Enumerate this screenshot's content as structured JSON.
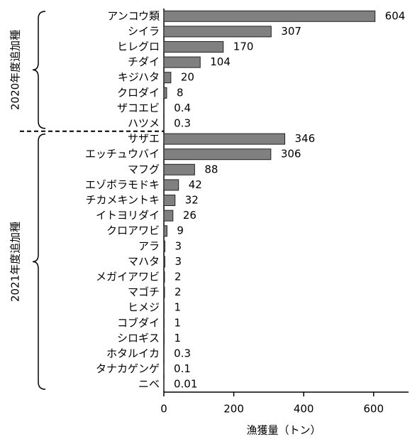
{
  "chart_data": {
    "type": "bar",
    "orientation": "horizontal",
    "categories": [
      "アンコウ類",
      "シイラ",
      "ヒレグロ",
      "チダイ",
      "キジハタ",
      "クロダイ",
      "ザコエビ",
      "ハツメ",
      "サザエ",
      "エッチュウバイ",
      "マフグ",
      "エゾボラモドキ",
      "チカメキントキ",
      "イトヨリダイ",
      "クロアワビ",
      "アラ",
      "マハタ",
      "メガイアワビ",
      "マゴチ",
      "ヒメジ",
      "コブダイ",
      "シロギス",
      "ホタルイカ",
      "タナカゲンゲ",
      "ニベ"
    ],
    "values": [
      604,
      307,
      170,
      104,
      20,
      8,
      0.4,
      0.3,
      346,
      306,
      88,
      42,
      32,
      26,
      9,
      3,
      3,
      2,
      2,
      1,
      1,
      1,
      0.3,
      0.1,
      0.01
    ],
    "color": "#808080",
    "xlabel": "漁獲量（トン）",
    "xlim": [
      0,
      700
    ],
    "xticks": [
      0,
      200,
      400,
      600
    ],
    "groups": [
      {
        "label": "2020年度追加種",
        "first": "アンコウ類",
        "last": "ハツメ"
      },
      {
        "label": "2021年度追加種",
        "first": "サザエ",
        "last": "ニベ"
      }
    ]
  }
}
